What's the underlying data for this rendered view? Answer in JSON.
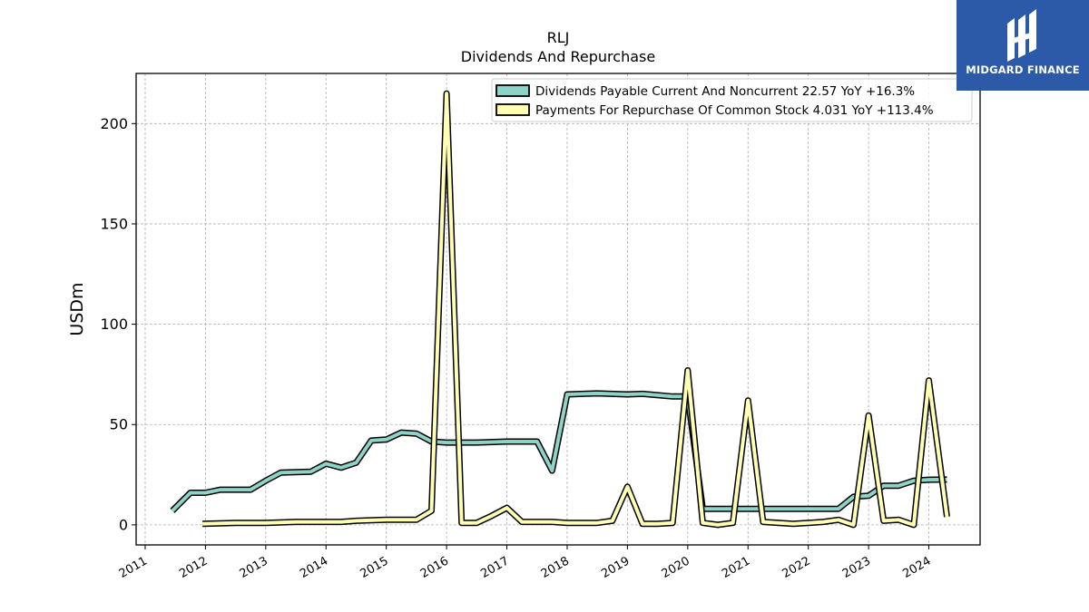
{
  "colors": {
    "series1": "#8dd3c7",
    "series2": "#ffffb3",
    "outline": "#000000",
    "grid": "#b0b0b0",
    "logo_bg": "#2c5aa8"
  },
  "logo": {
    "text": "MIDGARD FINANCE",
    "icon": "midgard-logo-icon"
  },
  "chart_data": {
    "type": "line",
    "title": "RLJ",
    "subtitle": "Dividends And Repurchase",
    "ylabel": "USDm",
    "xlabel": "",
    "ylim": [
      -10,
      225
    ],
    "xlim": [
      2010.85,
      2024.85
    ],
    "yticks": [
      0,
      50,
      100,
      150,
      200
    ],
    "xticks": [
      "2011",
      "2012",
      "2013",
      "2014",
      "2015",
      "2016",
      "2017",
      "2018",
      "2019",
      "2020",
      "2021",
      "2022",
      "2023",
      "2024"
    ],
    "grid": true,
    "legend_position": "top-right",
    "series": [
      {
        "name": "Dividends Payable Current And Noncurrent",
        "legend": "Dividends Payable Current And Noncurrent  22.57 YoY +16.3%",
        "color": "#8dd3c7",
        "points": [
          [
            2011.45,
            7
          ],
          [
            2011.75,
            16
          ],
          [
            2012.0,
            16
          ],
          [
            2012.25,
            17.5
          ],
          [
            2012.75,
            17.5
          ],
          [
            2013.0,
            22
          ],
          [
            2013.25,
            26
          ],
          [
            2013.75,
            26.5
          ],
          [
            2014.0,
            30.5
          ],
          [
            2014.25,
            28.5
          ],
          [
            2014.5,
            31
          ],
          [
            2014.75,
            42
          ],
          [
            2015.0,
            42.5
          ],
          [
            2015.25,
            46
          ],
          [
            2015.5,
            45.5
          ],
          [
            2015.75,
            41.5
          ],
          [
            2016.0,
            41
          ],
          [
            2016.25,
            41
          ],
          [
            2016.5,
            41
          ],
          [
            2017.0,
            41.5
          ],
          [
            2017.5,
            41.5
          ],
          [
            2017.75,
            27
          ],
          [
            2018.0,
            65
          ],
          [
            2018.5,
            65.5
          ],
          [
            2019.0,
            65
          ],
          [
            2019.25,
            65.3
          ],
          [
            2019.75,
            64
          ],
          [
            2020.0,
            64
          ],
          [
            2020.25,
            8
          ],
          [
            2020.75,
            8
          ],
          [
            2021.0,
            8
          ],
          [
            2021.25,
            8
          ],
          [
            2022.0,
            8
          ],
          [
            2022.5,
            8
          ],
          [
            2022.75,
            14
          ],
          [
            2023.0,
            14.5
          ],
          [
            2023.25,
            19.5
          ],
          [
            2023.5,
            19.5
          ],
          [
            2023.75,
            22
          ],
          [
            2024.0,
            22.5
          ],
          [
            2024.3,
            22.57
          ]
        ]
      },
      {
        "name": "Payments For Repurchase Of Common Stock",
        "legend": "Payments For Repurchase Of Common Stock  4.031 YoY +113.4%",
        "color": "#ffffb3",
        "points": [
          [
            2011.95,
            0.5
          ],
          [
            2012.5,
            1
          ],
          [
            2013.0,
            1
          ],
          [
            2013.5,
            1.5
          ],
          [
            2014.0,
            1.5
          ],
          [
            2014.25,
            1.5
          ],
          [
            2014.5,
            2
          ],
          [
            2015.0,
            2.5
          ],
          [
            2015.5,
            2.5
          ],
          [
            2015.75,
            7
          ],
          [
            2016.0,
            215
          ],
          [
            2016.25,
            1
          ],
          [
            2016.5,
            1
          ],
          [
            2016.75,
            4.5
          ],
          [
            2017.0,
            8.5
          ],
          [
            2017.25,
            1.5
          ],
          [
            2017.75,
            1.5
          ],
          [
            2018.0,
            1
          ],
          [
            2018.5,
            1
          ],
          [
            2018.75,
            2
          ],
          [
            2019.0,
            19
          ],
          [
            2019.25,
            0.5
          ],
          [
            2019.5,
            0.5
          ],
          [
            2019.75,
            1
          ],
          [
            2020.0,
            77
          ],
          [
            2020.25,
            1
          ],
          [
            2020.5,
            0
          ],
          [
            2020.75,
            1
          ],
          [
            2021.0,
            62
          ],
          [
            2021.25,
            1.5
          ],
          [
            2021.75,
            0.5
          ],
          [
            2022.0,
            1
          ],
          [
            2022.25,
            1.5
          ],
          [
            2022.5,
            2.5
          ],
          [
            2022.75,
            0
          ],
          [
            2023.0,
            54.5
          ],
          [
            2023.25,
            2
          ],
          [
            2023.5,
            2.5
          ],
          [
            2023.75,
            0
          ],
          [
            2024.0,
            72
          ],
          [
            2024.3,
            4.031
          ]
        ]
      }
    ]
  }
}
